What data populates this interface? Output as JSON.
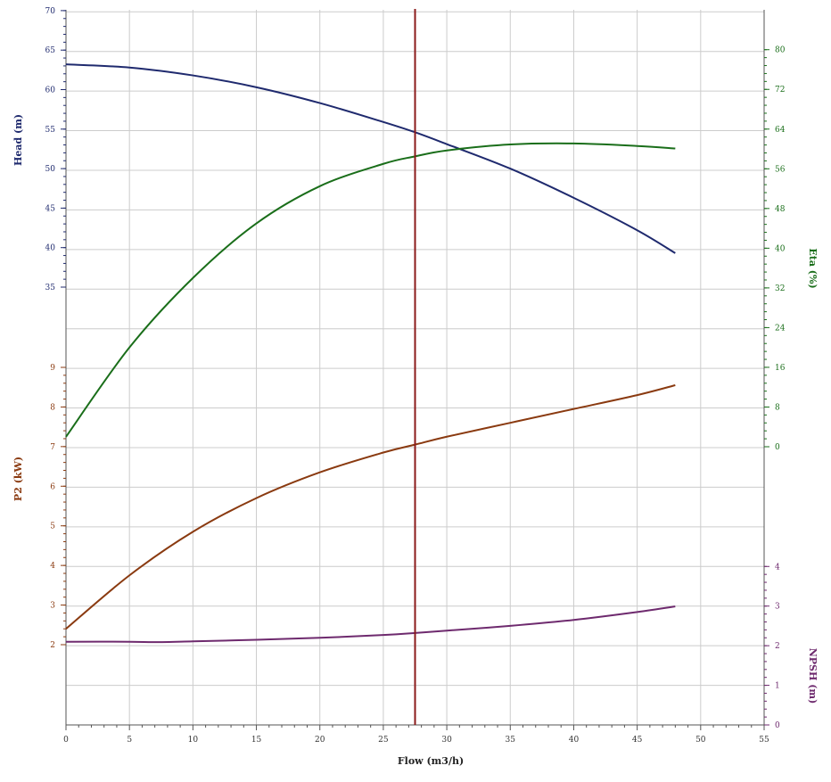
{
  "chart_data": {
    "type": "line",
    "title": "",
    "xlabel": "Flow (m3/h)",
    "xlim": [
      0,
      55
    ],
    "x_ticks": [
      "0",
      "5",
      "10",
      "15",
      "20",
      "25",
      "30",
      "35",
      "40",
      "45",
      "50",
      "55"
    ],
    "grid": true,
    "duty_point_flow": 27.5,
    "axes": {
      "head": {
        "label": "Head (m)",
        "color": "#1f2a6e",
        "ticks": [
          "35",
          "40",
          "45",
          "50",
          "55",
          "60",
          "65",
          "70"
        ],
        "range": [
          35,
          70
        ]
      },
      "p2": {
        "label": "P2 (kW)",
        "color": "#8a3a10",
        "ticks": [
          "2",
          "3",
          "4",
          "5",
          "6",
          "7",
          "8",
          "9"
        ],
        "range": [
          2,
          9
        ]
      },
      "eta": {
        "label": "Eta (%)",
        "color": "#1a6e1a",
        "ticks": [
          "0",
          "8",
          "16",
          "24",
          "32",
          "40",
          "48",
          "56",
          "64",
          "72",
          "80"
        ],
        "range": [
          0,
          80
        ]
      },
      "npsh": {
        "label": "NPSH (m)",
        "color": "#6e2a6e",
        "ticks": [
          "0",
          "1",
          "2",
          "3",
          "4"
        ],
        "range": [
          0,
          4
        ]
      }
    },
    "series": [
      {
        "name": "Head (m)",
        "axis": "head",
        "x": [
          0,
          5,
          10,
          15,
          20,
          25,
          27.5,
          30,
          35,
          40,
          45,
          48
        ],
        "values": [
          63.2,
          62.8,
          61.8,
          60.3,
          58.3,
          55.9,
          54.6,
          53.1,
          50.0,
          46.3,
          42.2,
          39.3
        ]
      },
      {
        "name": "Eta (%)",
        "axis": "eta",
        "x": [
          0,
          5,
          10,
          15,
          20,
          25,
          27.5,
          30,
          35,
          40,
          45,
          48
        ],
        "values": [
          2,
          20,
          34,
          45,
          52.5,
          57,
          58.5,
          59.7,
          60.9,
          61.1,
          60.6,
          60.1
        ]
      },
      {
        "name": "P2 (kW)",
        "axis": "p2",
        "x": [
          0,
          5,
          10,
          15,
          20,
          25,
          27.5,
          30,
          35,
          40,
          45,
          48
        ],
        "values": [
          2.4,
          3.75,
          4.85,
          5.7,
          6.35,
          6.85,
          7.05,
          7.25,
          7.6,
          7.95,
          8.3,
          8.55
        ]
      },
      {
        "name": "NPSH (m)",
        "axis": "npsh",
        "x": [
          0,
          5,
          7,
          10,
          15,
          20,
          25,
          27.5,
          30,
          35,
          40,
          45,
          48
        ],
        "values": [
          2.1,
          2.1,
          2.09,
          2.11,
          2.15,
          2.2,
          2.27,
          2.32,
          2.38,
          2.5,
          2.65,
          2.85,
          2.99
        ]
      }
    ],
    "colors": {
      "grid": "#cccccc",
      "duty_line": "#8b1a1a",
      "axis": "#555555"
    }
  }
}
